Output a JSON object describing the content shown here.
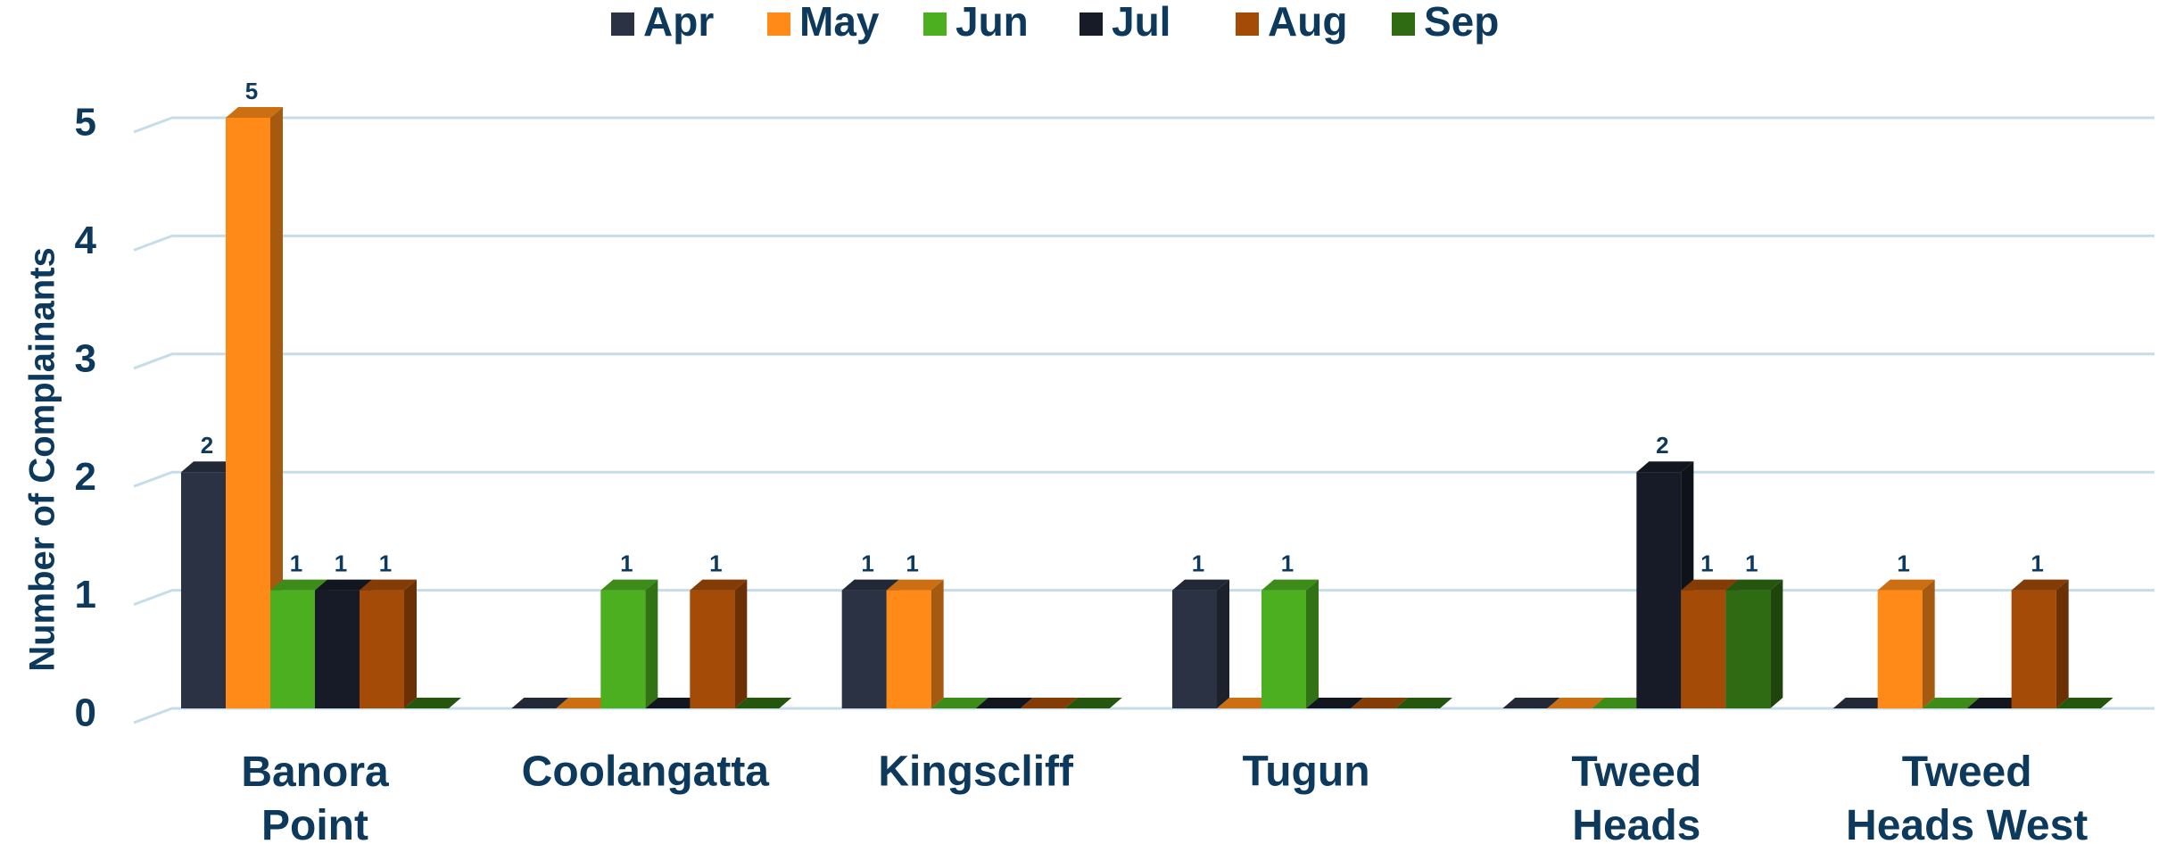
{
  "chart_data": {
    "type": "bar",
    "y_label": "Number of Complainants",
    "categories": [
      "Banora Point",
      "Coolangatta",
      "Kingscliff",
      "Tugun",
      "Tweed Heads",
      "Tweed Heads West"
    ],
    "series": [
      {
        "name": "Apr",
        "color": "#2b3244",
        "values": [
          2,
          0,
          1,
          1,
          0,
          0
        ]
      },
      {
        "name": "May",
        "color": "#ff8a17",
        "values": [
          5,
          0,
          1,
          0,
          0,
          1
        ]
      },
      {
        "name": "Jun",
        "color": "#4caf1f",
        "values": [
          1,
          1,
          0,
          1,
          0,
          0
        ]
      },
      {
        "name": "Jul",
        "color": "#161b27",
        "values": [
          1,
          0,
          0,
          0,
          2,
          0
        ]
      },
      {
        "name": "Aug",
        "color": "#a44b08",
        "values": [
          1,
          1,
          0,
          0,
          1,
          1
        ]
      },
      {
        "name": "Sep",
        "color": "#2e6b12",
        "values": [
          0,
          0,
          0,
          0,
          1,
          0
        ]
      }
    ],
    "ylim": [
      0,
      5
    ],
    "yticks": [
      0,
      1,
      2,
      3,
      4,
      5
    ],
    "grid": true
  }
}
